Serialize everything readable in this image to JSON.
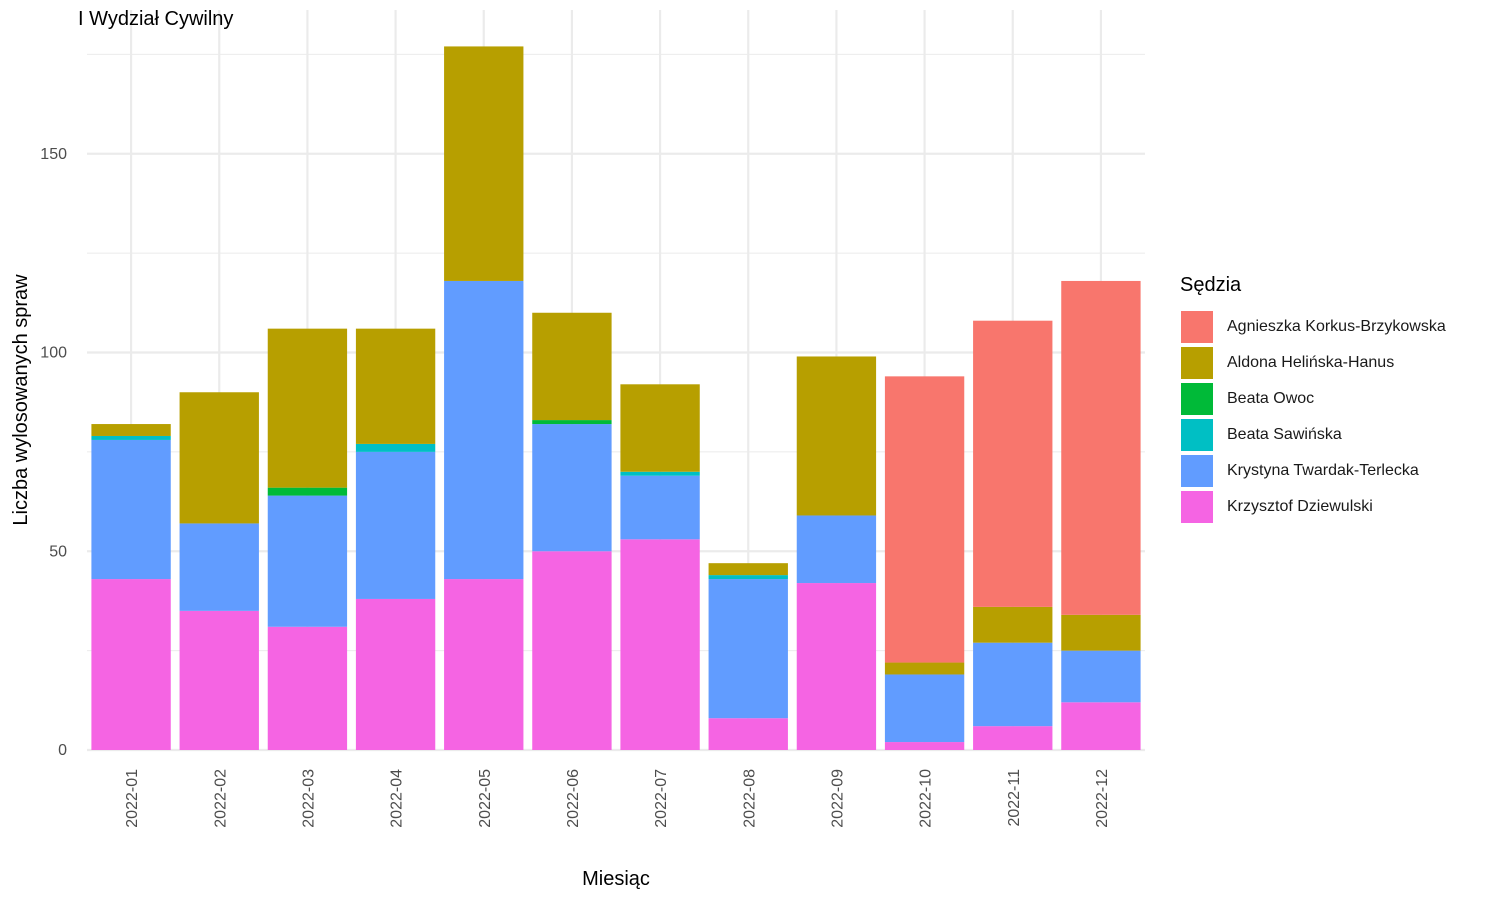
{
  "chart_data": {
    "type": "bar",
    "stacked": true,
    "subtitle": "I Wydział Cywilny",
    "xlabel": "Miesiąc",
    "ylabel": "Liczba wylosowanych spraw",
    "ylim": [
      0,
      180
    ],
    "yticks": [
      0,
      50,
      100,
      150
    ],
    "grid": true,
    "legend_title": "Sędzia",
    "legend_position": "right",
    "categories": [
      "2022-01",
      "2022-02",
      "2022-03",
      "2022-04",
      "2022-05",
      "2022-06",
      "2022-07",
      "2022-08",
      "2022-09",
      "2022-10",
      "2022-11",
      "2022-12"
    ],
    "series": [
      {
        "name": "Agnieszka Korkus-Brzykowska",
        "color": "#F8766D",
        "values": [
          0,
          0,
          0,
          0,
          0,
          0,
          0,
          0,
          0,
          72,
          72,
          84
        ]
      },
      {
        "name": "Aldona Helińska-Hanus",
        "color": "#B79F00",
        "values": [
          3,
          33,
          40,
          29,
          59,
          27,
          22,
          3,
          40,
          3,
          9,
          9
        ]
      },
      {
        "name": "Beata Owoc",
        "color": "#00BA38",
        "values": [
          0,
          0,
          2,
          0,
          0,
          1,
          0,
          0,
          0,
          0,
          0,
          0
        ]
      },
      {
        "name": "Beata Sawińska",
        "color": "#00BFC4",
        "values": [
          1,
          0,
          0,
          2,
          0,
          0,
          1,
          1,
          0,
          0,
          0,
          0
        ]
      },
      {
        "name": "Krystyna Twardak-Terlecka",
        "color": "#619CFF",
        "values": [
          35,
          22,
          33,
          37,
          75,
          32,
          16,
          35,
          17,
          17,
          21,
          13
        ]
      },
      {
        "name": "Krzysztof Dziewulski",
        "color": "#F564E3",
        "values": [
          43,
          35,
          31,
          38,
          43,
          50,
          53,
          8,
          42,
          2,
          6,
          12
        ]
      }
    ]
  }
}
